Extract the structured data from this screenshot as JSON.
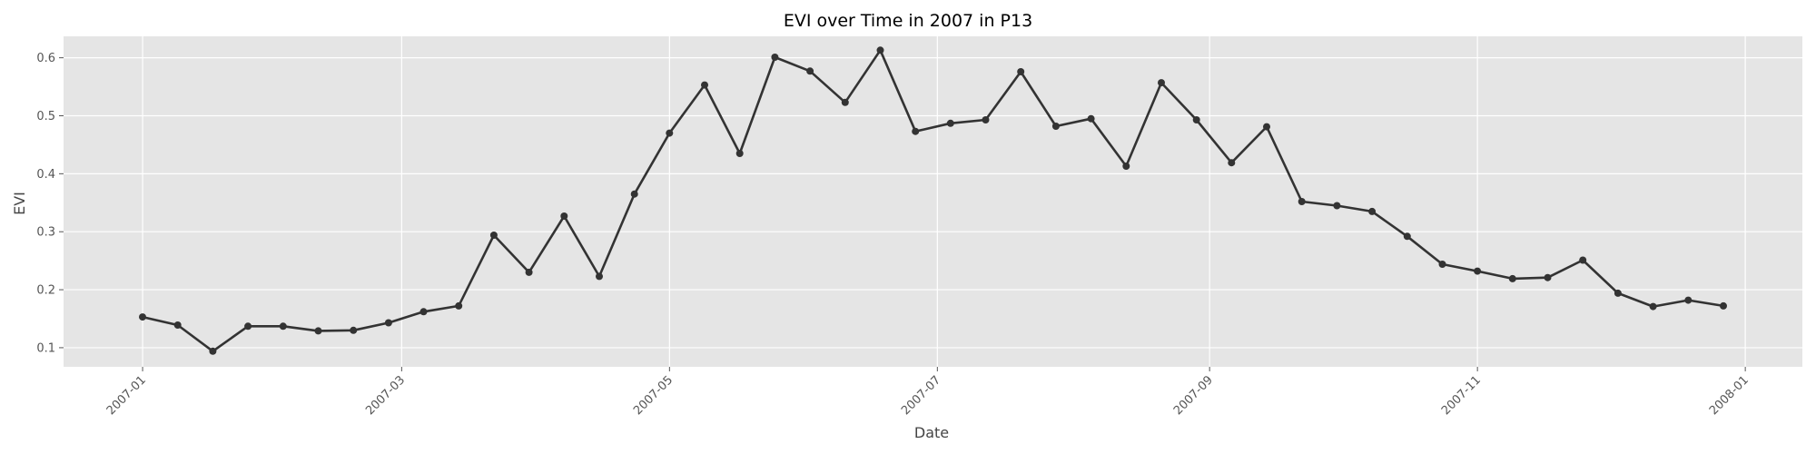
{
  "chart_data": {
    "type": "line",
    "title": "EVI over Time in 2007 in P13",
    "xlabel": "Date",
    "ylabel": "EVI",
    "x_ticks": [
      "2007-01",
      "2007-03",
      "2007-05",
      "2007-07",
      "2007-09",
      "2007-11",
      "2008-01"
    ],
    "y_ticks": [
      "0.1",
      "0.2",
      "0.3",
      "0.4",
      "0.5",
      "0.6"
    ],
    "x_range": [
      "2006-12-14",
      "2008-01-14"
    ],
    "ylim": [
      0.067,
      0.637
    ],
    "grid": true,
    "background": "#e5e5e5",
    "line_color": "#333333",
    "series": [
      {
        "x": [
          "2007-01-01",
          "2007-01-09",
          "2007-01-17",
          "2007-01-25",
          "2007-02-02",
          "2007-02-10",
          "2007-02-18",
          "2007-02-26",
          "2007-03-06",
          "2007-03-14",
          "2007-03-22",
          "2007-03-30",
          "2007-04-07",
          "2007-04-15",
          "2007-04-23",
          "2007-05-01",
          "2007-05-09",
          "2007-05-17",
          "2007-05-25",
          "2007-06-02",
          "2007-06-10",
          "2007-06-18",
          "2007-06-26",
          "2007-07-04",
          "2007-07-12",
          "2007-07-20",
          "2007-07-28",
          "2007-08-05",
          "2007-08-13",
          "2007-08-21",
          "2007-08-29",
          "2007-09-06",
          "2007-09-14",
          "2007-09-22",
          "2007-09-30",
          "2007-10-08",
          "2007-10-16",
          "2007-10-24",
          "2007-11-01",
          "2007-11-09",
          "2007-11-17",
          "2007-11-25",
          "2007-12-03",
          "2007-12-11",
          "2007-12-19",
          "2007-12-27"
        ],
        "values": [
          0.153,
          0.139,
          0.094,
          0.137,
          0.137,
          0.129,
          0.13,
          0.143,
          0.162,
          0.172,
          0.294,
          0.23,
          0.327,
          0.223,
          0.365,
          0.47,
          0.553,
          0.435,
          0.601,
          0.577,
          0.523,
          0.613,
          0.473,
          0.487,
          0.493,
          0.576,
          0.482,
          0.495,
          0.413,
          0.557,
          0.493,
          0.419,
          0.481,
          0.352,
          0.345,
          0.335,
          0.292,
          0.244,
          0.232,
          0.219,
          0.221,
          0.251,
          0.194,
          0.171,
          0.182,
          0.172
        ]
      }
    ]
  }
}
